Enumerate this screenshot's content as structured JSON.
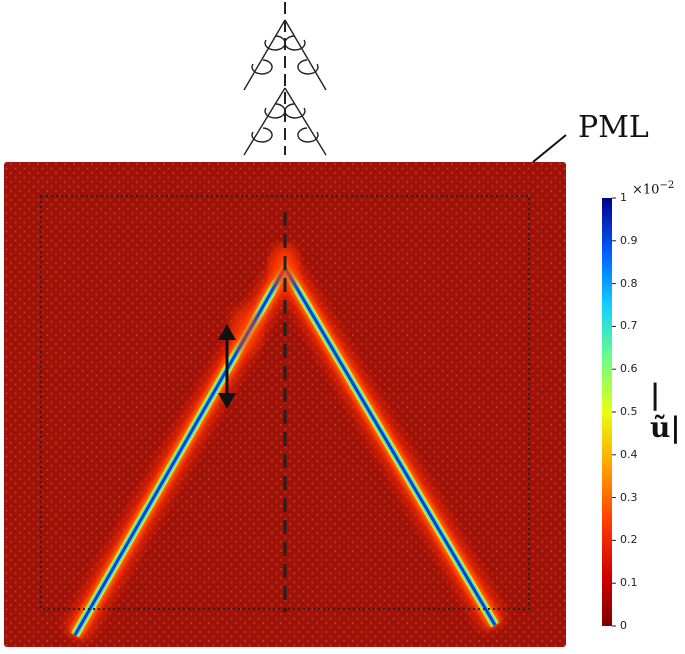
{
  "labels": {
    "pml": "PML",
    "colorbar_exponent": "×10",
    "colorbar_exponent_power": "−2",
    "colorbar_quantity": "|ũ|"
  },
  "colorbar": {
    "ticks": [
      "1",
      "0.9",
      "0.8",
      "0.7",
      "0.6",
      "0.5",
      "0.4",
      "0.3",
      "0.2",
      "0.1",
      "0"
    ],
    "colormap": "jet",
    "min": 0,
    "max": 1
  },
  "colors": {
    "background_field": "#a81a10",
    "wave_core": "#1a3cc8",
    "dashed_lines": "#222222"
  },
  "icons": {
    "top": "chiral-tree-lattice-icon",
    "arrow": "double-headed-arrow-icon"
  }
}
